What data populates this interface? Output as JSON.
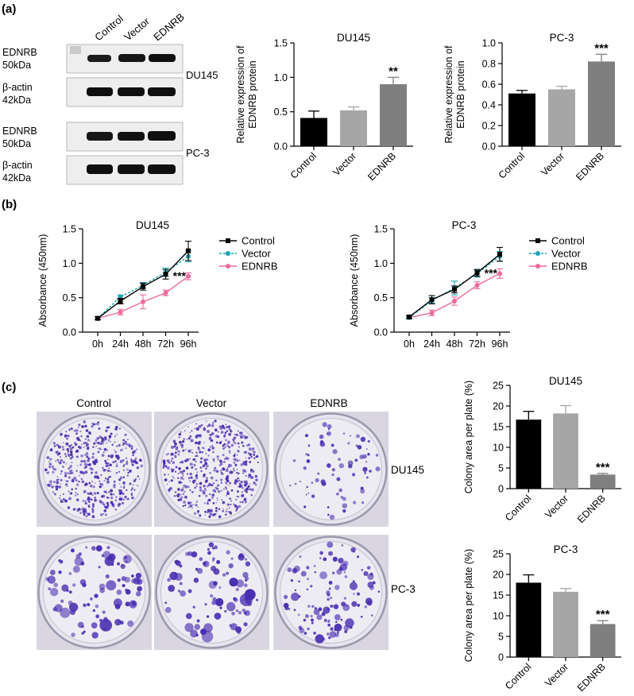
{
  "panels": {
    "a": {
      "label": "(a)",
      "blot_columns": [
        "Control",
        "Vector",
        "EDNRB"
      ],
      "blot_rows": [
        {
          "protein": "EDNRB",
          "mw": "50kDa"
        },
        {
          "protein": "β-actin",
          "mw": "42kDa"
        },
        {
          "protein": "EDNRB",
          "mw": "50kDa"
        },
        {
          "protein": "β-actin",
          "mw": "42kDa"
        }
      ],
      "blot_cell_lines": [
        "DU145",
        "PC-3"
      ]
    },
    "b": {
      "label": "(b)"
    },
    "c": {
      "label": "(c)",
      "plate_columns": [
        "Control",
        "Vector",
        "EDNRB"
      ],
      "plate_rows": [
        "DU145",
        "PC-3"
      ]
    }
  },
  "colors": {
    "control": "#000000",
    "vector": "#a6a6a6",
    "ednrb_bar": "#7f7f7f",
    "ednrb_line": "#ee6a9a",
    "vector_line": "#1aa5b5",
    "crystal_violet": "#4a2fb0"
  },
  "chart_data": [
    {
      "id": "a-du145",
      "type": "bar",
      "title": "DU145",
      "ylabel_lines": [
        "Relative expression of",
        "EDNRB protein"
      ],
      "categories": [
        "Control",
        "Vector",
        "EDNRB"
      ],
      "values": [
        0.41,
        0.52,
        0.9
      ],
      "errors": [
        0.1,
        0.05,
        0.1
      ],
      "yticks": [
        "0.0",
        "0.5",
        "1.0",
        "1.5"
      ],
      "ylim": [
        0,
        1.5
      ],
      "annotation": "**"
    },
    {
      "id": "a-pc3",
      "type": "bar",
      "title": "PC-3",
      "ylabel_lines": [
        "Relative expression of",
        "EDNRB protein"
      ],
      "categories": [
        "Control",
        "Vector",
        "EDNRB"
      ],
      "values": [
        0.51,
        0.55,
        0.82
      ],
      "errors": [
        0.03,
        0.03,
        0.07
      ],
      "yticks": [
        "0.0",
        "0.2",
        "0.4",
        "0.6",
        "0.8",
        "1.0"
      ],
      "ylim": [
        0,
        1.0
      ],
      "annotation": "***"
    },
    {
      "id": "b-du145",
      "type": "line",
      "title": "DU145",
      "ylabel": "Absorbance (450nm)",
      "x": [
        "0h",
        "24h",
        "48h",
        "72h",
        "96h"
      ],
      "yticks": [
        "0.0",
        "0.5",
        "1.0",
        "1.5"
      ],
      "ylim": [
        0,
        1.5
      ],
      "series": [
        {
          "name": "Control",
          "values": [
            0.2,
            0.45,
            0.66,
            0.84,
            1.18
          ],
          "errors": [
            0.02,
            0.04,
            0.05,
            0.07,
            0.14
          ]
        },
        {
          "name": "Vector",
          "values": [
            0.2,
            0.51,
            0.68,
            0.87,
            1.1
          ],
          "errors": [
            0.02,
            0.03,
            0.04,
            0.06,
            0.08
          ]
        },
        {
          "name": "EDNRB",
          "values": [
            0.2,
            0.29,
            0.44,
            0.57,
            0.81
          ],
          "errors": [
            0.02,
            0.04,
            0.1,
            0.04,
            0.05
          ]
        }
      ],
      "legend": "right",
      "annotation": "***"
    },
    {
      "id": "b-pc3",
      "type": "line",
      "title": "PC-3",
      "ylabel": "Absorbance (450nm)",
      "x": [
        "0h",
        "24h",
        "48h",
        "72h",
        "96h"
      ],
      "yticks": [
        "0.0",
        "0.5",
        "1.0",
        "1.5"
      ],
      "ylim": [
        0,
        1.5
      ],
      "series": [
        {
          "name": "Control",
          "values": [
            0.22,
            0.47,
            0.62,
            0.86,
            1.13
          ],
          "errors": [
            0.02,
            0.06,
            0.05,
            0.05,
            0.1
          ]
        },
        {
          "name": "Vector",
          "values": [
            0.21,
            0.46,
            0.64,
            0.85,
            1.1
          ],
          "errors": [
            0.02,
            0.04,
            0.1,
            0.05,
            0.07
          ]
        },
        {
          "name": "EDNRB",
          "values": [
            0.21,
            0.28,
            0.45,
            0.68,
            0.85
          ],
          "errors": [
            0.02,
            0.04,
            0.06,
            0.05,
            0.07
          ]
        }
      ],
      "legend": "right",
      "annotation": "***"
    },
    {
      "id": "c-du145",
      "type": "bar",
      "title": "DU145",
      "ylabel_lines": [
        "Colony area per plate (%)"
      ],
      "categories": [
        "Control",
        "Vector",
        "EDNRB"
      ],
      "values": [
        16.7,
        18.2,
        3.4
      ],
      "errors": [
        2.0,
        1.9,
        0.3
      ],
      "yticks": [
        "0",
        "5",
        "10",
        "15",
        "20",
        "25"
      ],
      "ylim": [
        0,
        25
      ],
      "annotation": "***"
    },
    {
      "id": "c-pc3",
      "type": "bar",
      "title": "PC-3",
      "ylabel_lines": [
        "Colony area per plate (%)"
      ],
      "categories": [
        "Control",
        "Vector",
        "EDNRB"
      ],
      "values": [
        18.0,
        15.8,
        8.0
      ],
      "errors": [
        1.9,
        0.8,
        0.8
      ],
      "yticks": [
        "0",
        "5",
        "10",
        "15",
        "20",
        "25"
      ],
      "ylim": [
        0,
        25
      ],
      "annotation": "***"
    }
  ]
}
